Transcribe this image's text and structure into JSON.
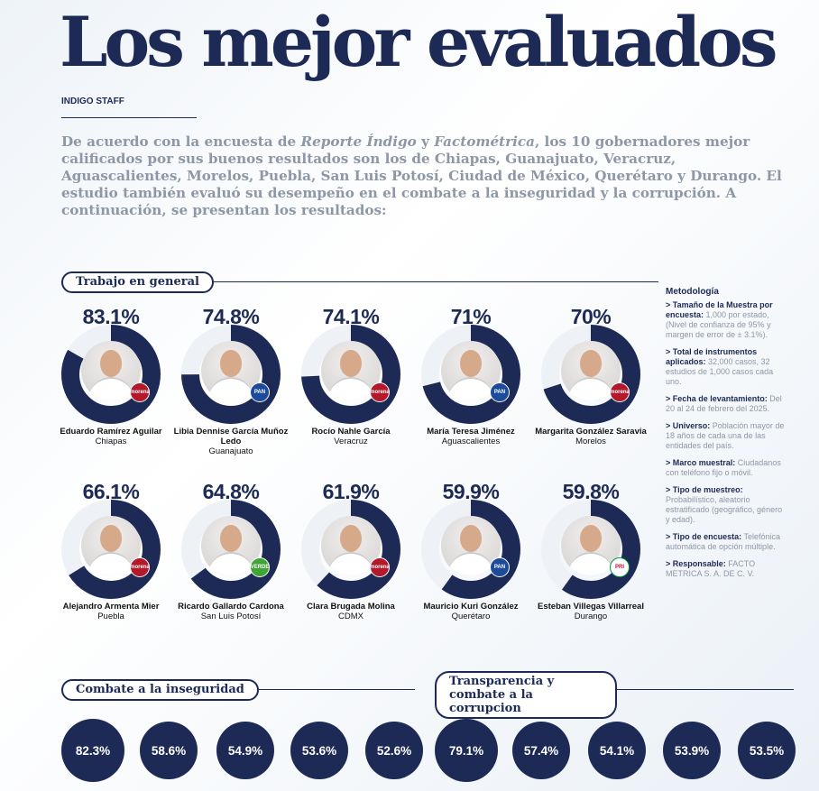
{
  "title": "Los mejor evaluados",
  "byline": "INDIGO STAFF",
  "intro": {
    "part1": "De acuerdo con la encuesta de ",
    "em1": "Reporte Índigo",
    "part2": " y ",
    "em2": "Factométrica",
    "part3": ", los 10 gobernadores mejor calificados por sus buenos resultados son los de Chiapas, Guanajuato, Veracruz, Aguascalientes, Morelos, Puebla, San Luis Potosí, Ciudad de México, Querétaro y Durango. El estudio también evaluó su desempeño en el combate a la inseguridad y la corrupción. A continuación, se presentan los resultados:"
  },
  "colors": {
    "navy": "#1c2a55",
    "track": "#eef1f6",
    "muted": "#8e97a6"
  },
  "sections": {
    "general": "Trabajo en general",
    "security": "Combate a la inseguridad",
    "corruption": "Transparencia y combate a la corrupcion"
  },
  "chart_data": [
    {
      "type": "donut",
      "title": "Trabajo en general",
      "unit": "%",
      "governors": [
        {
          "pct_label": "83.1%",
          "value": 83.1,
          "name": "Eduardo Ramírez Aguilar",
          "state": "Chiapas",
          "party": "morena"
        },
        {
          "pct_label": "74.8%",
          "value": 74.8,
          "name": "Libia Dennise García Muñoz Ledo",
          "state": "Guanajuato",
          "party": "PAN"
        },
        {
          "pct_label": "74.1%",
          "value": 74.1,
          "name": "Rocío Nahle García",
          "state": "Veracruz",
          "party": "morena"
        },
        {
          "pct_label": "71%",
          "value": 71,
          "name": "María Teresa Jiménez",
          "state": "Aguascalientes",
          "party": "PAN"
        },
        {
          "pct_label": "70%",
          "value": 70,
          "name": "Margarita González Saravia",
          "state": "Morelos",
          "party": "morena"
        },
        {
          "pct_label": "66.1%",
          "value": 66.1,
          "name": "Alejandro Armenta Mier",
          "state": "Puebla",
          "party": "morena"
        },
        {
          "pct_label": "64.8%",
          "value": 64.8,
          "name": "Ricardo Gallardo Cardona",
          "state": "San Luis Potosí",
          "party": "PVEM"
        },
        {
          "pct_label": "61.9%",
          "value": 61.9,
          "name": "Clara Brugada Molina",
          "state": "CDMX",
          "party": "morena"
        },
        {
          "pct_label": "59.9%",
          "value": 59.9,
          "name": "Mauricio Kuri González",
          "state": "Querétaro",
          "party": "PAN"
        },
        {
          "pct_label": "59.8%",
          "value": 59.8,
          "name": "Esteban Villegas Villarreal",
          "state": "Durango",
          "party": "PRI"
        }
      ]
    },
    {
      "type": "bubbles",
      "title": "Combate a la inseguridad",
      "labels": [
        "82.3%",
        "58.6%",
        "54.9%",
        "53.6%",
        "52.6%"
      ],
      "values": [
        82.3,
        58.6,
        54.9,
        53.6,
        52.6
      ]
    },
    {
      "type": "bubbles",
      "title": "Transparencia y combate a la corrupcion",
      "labels": [
        "79.1%",
        "57.4%",
        "54.1%",
        "53.9%",
        "53.5%"
      ],
      "values": [
        79.1,
        57.4,
        54.1,
        53.9,
        53.5
      ]
    }
  ],
  "badges": {
    "morena": "morena",
    "PAN": "PAN",
    "PVEM": "VERDE",
    "PRI": "PRI"
  },
  "metodologia": {
    "title": "Metodología",
    "items": [
      {
        "key": "> Tamaño de la Muestra por encuesta:",
        "val": " 1,000 por estado, (Nivel de confianza de 95% y margen de error de ± 3.1%)."
      },
      {
        "key": "> Total de instrumentos aplicados:",
        "val": " 32,000 casos, 32 estudios de 1,000 casos cada uno."
      },
      {
        "key": "> Fecha de levantamiento:",
        "val": " Del 20 al 24 de febrero del 2025."
      },
      {
        "key": "> Universo:",
        "val": " Población mayor de 18 años de cada una de las entidades del país."
      },
      {
        "key": "> Marco muestral:",
        "val": " Ciudadanos con teléfono fijo o móvil."
      },
      {
        "key": "> Tipo de muestreo:",
        "val": " Probabilístico, aleatorio estratificado (geográfico, género y edad)."
      },
      {
        "key": "> Tipo de encuesta:",
        "val": " Telefónica automática de opción múltiple."
      },
      {
        "key": "> Responsable:",
        "val": " FACTO METRICA S. A. DE C. V."
      }
    ]
  }
}
